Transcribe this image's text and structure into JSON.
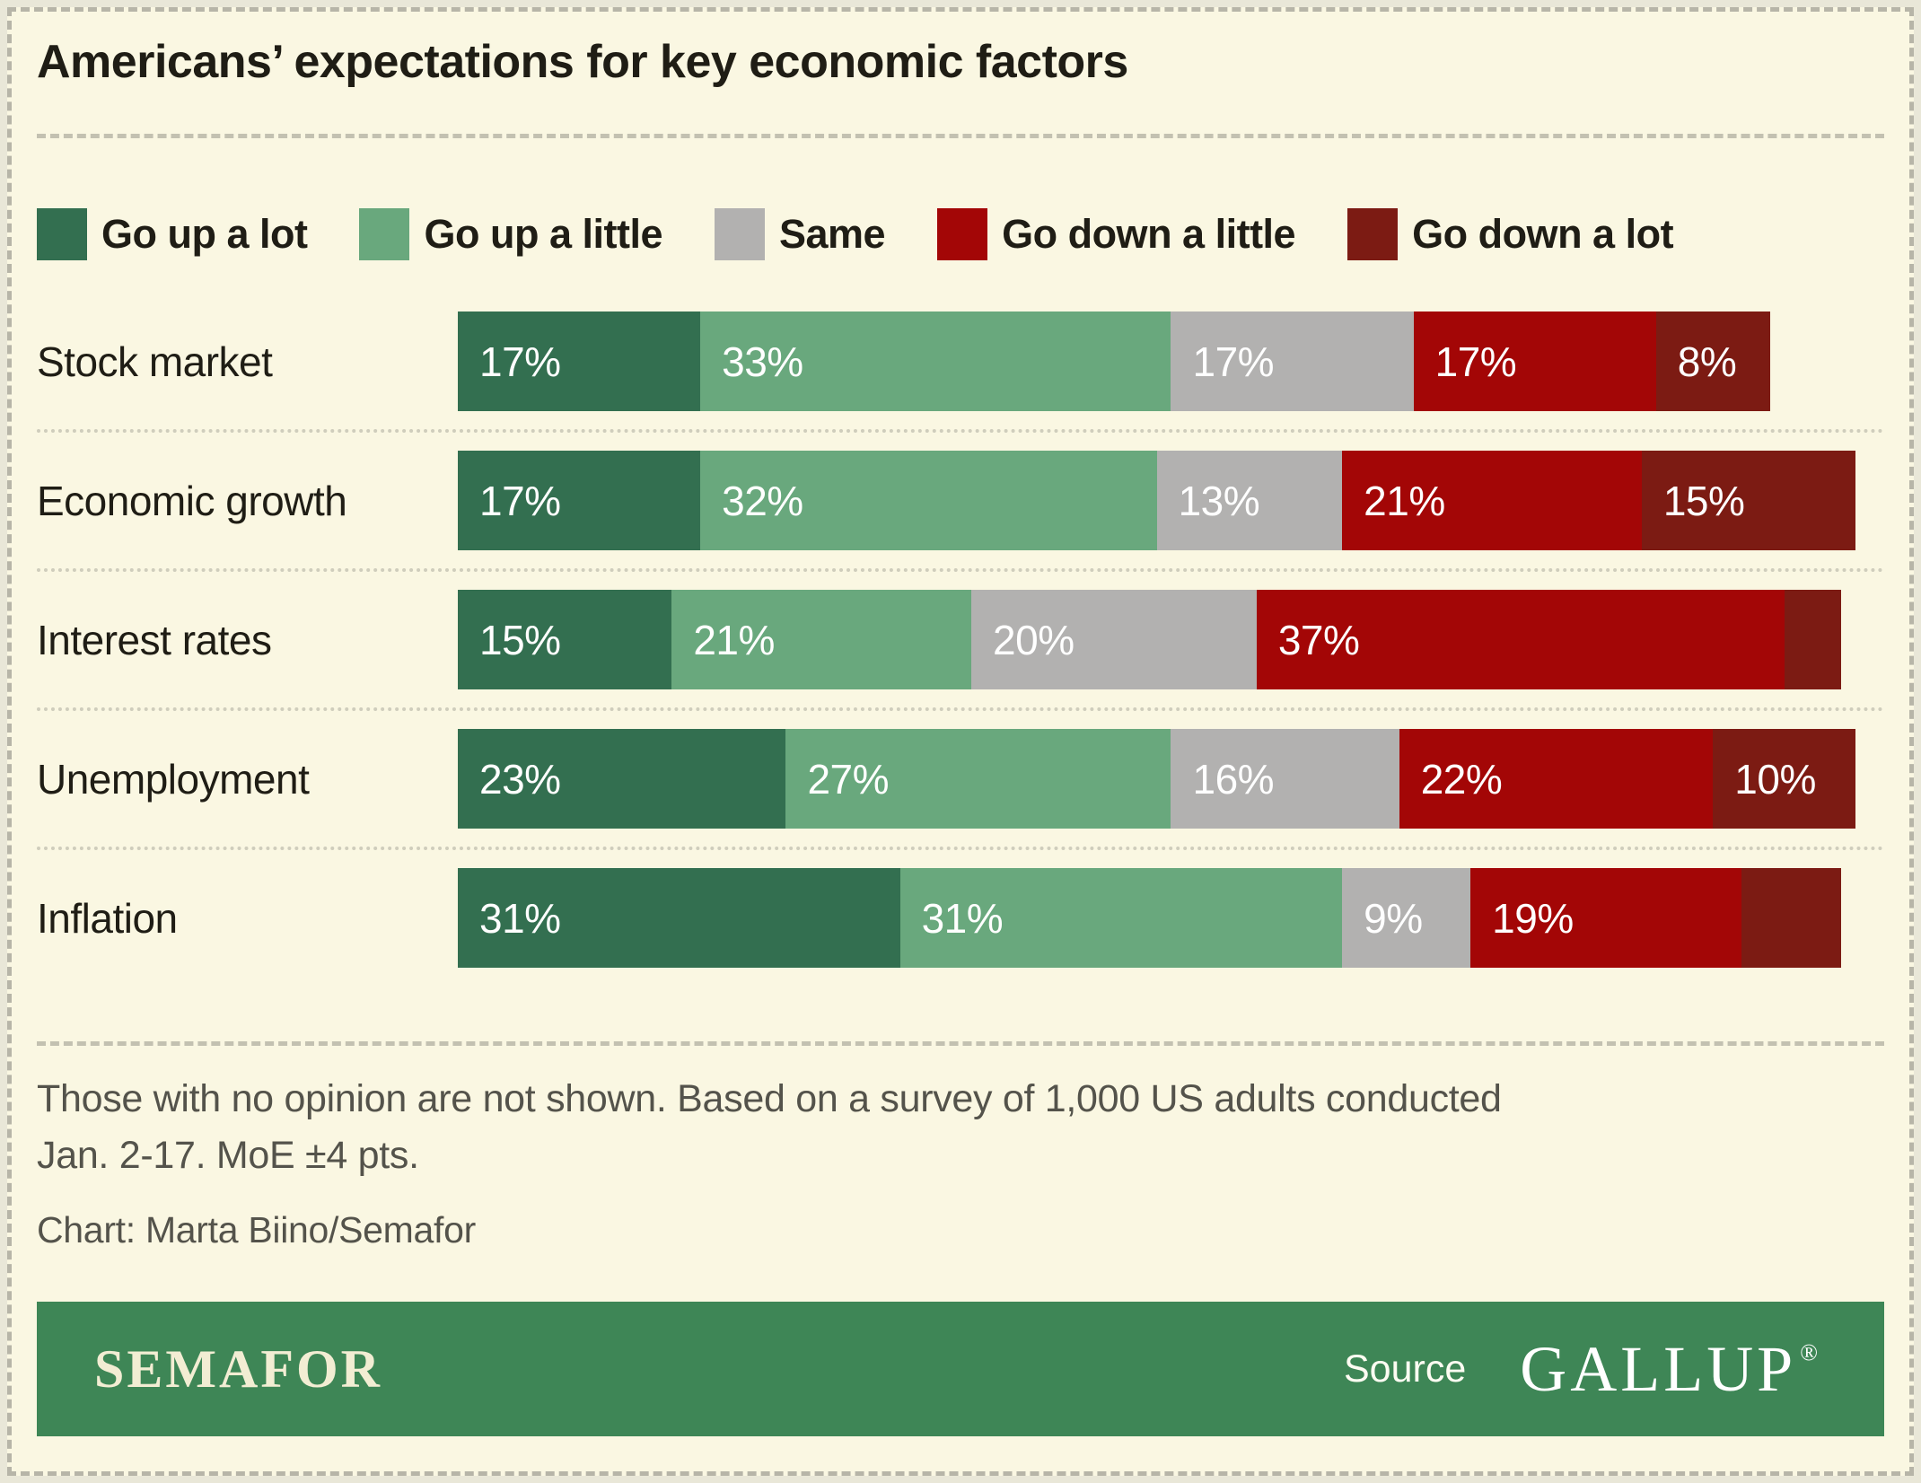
{
  "title": "Americans’ expectations for key economic factors",
  "chart_data": {
    "type": "bar",
    "stacked": true,
    "orientation": "horizontal",
    "value_unit": "%",
    "xlim": [
      0,
      100
    ],
    "legend_position": "top",
    "label_min_value_shown": 8,
    "categories": [
      "Stock market",
      "Economic growth",
      "Interest rates",
      "Unemployment",
      "Inflation"
    ],
    "series": [
      {
        "name": "Go up a lot",
        "color": "#336f50",
        "values": [
          17,
          17,
          15,
          23,
          31
        ]
      },
      {
        "name": "Go up a little",
        "color": "#69a87d",
        "values": [
          33,
          32,
          21,
          27,
          31
        ]
      },
      {
        "name": "Same",
        "color": "#b2b1b0",
        "values": [
          17,
          13,
          20,
          16,
          9
        ]
      },
      {
        "name": "Go down a little",
        "color": "#a30606",
        "values": [
          17,
          21,
          37,
          22,
          19
        ]
      },
      {
        "name": "Go down a lot",
        "color": "#7c1b13",
        "values": [
          8,
          15,
          4,
          10,
          7
        ]
      }
    ]
  },
  "notes": [
    "Those with no opinion are not shown. Based on a survey of 1,000 US adults conducted",
    "Jan. 2-17. MoE ±4 pts."
  ],
  "credit": "Chart: Marta Biino/Semafor",
  "footer": {
    "brand": "SEMAFOR",
    "source_label": "Source",
    "source_name": "GALLUP",
    "registered_mark": "®"
  },
  "colors": {
    "background": "#faf7e2",
    "footer_bar": "#3e8656"
  }
}
